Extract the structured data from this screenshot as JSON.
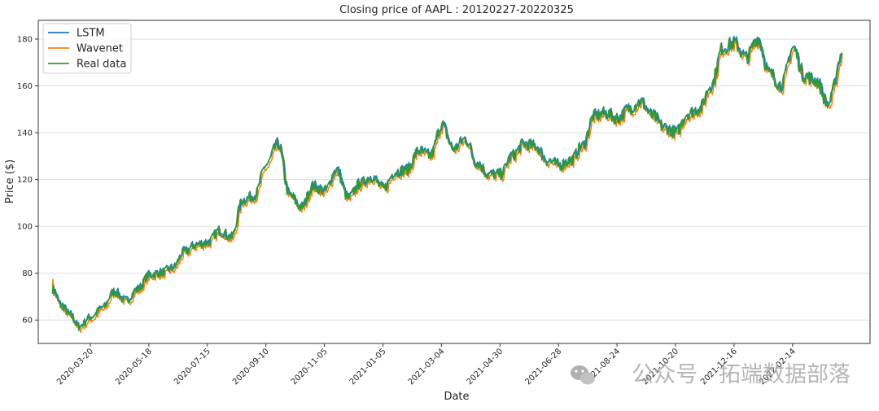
{
  "chart_data": {
    "type": "line",
    "title": "Closing price of AAPL : 20120227-20220325",
    "xlabel": "Date",
    "ylabel": "Price ($)",
    "x_tick_labels": [
      "2020-03-20",
      "2020-05-18",
      "2020-07-15",
      "2020-09-10",
      "2020-11-05",
      "2021-01-05",
      "2021-03-04",
      "2021-04-30",
      "2021-06-28",
      "2021-08-24",
      "2021-10-20",
      "2021-12-16",
      "2022-02-14"
    ],
    "y_ticks": [
      60,
      80,
      100,
      120,
      140,
      160,
      180
    ],
    "ylim": [
      50,
      188
    ],
    "grid": "horizontal",
    "legend_position": "top-left",
    "colors": {
      "LSTM": "#1f77b4",
      "Wavenet": "#ff7f0e",
      "Real data": "#2ca02c"
    },
    "x_days_tick_spacing": 57.5,
    "keypoints_x_index_in_ticks": [
      -0.65,
      -0.5,
      -0.35,
      -0.2,
      0,
      0.2,
      0.4,
      0.6,
      0.8,
      1.0,
      1.2,
      1.4,
      1.6,
      1.8,
      2.0,
      2.2,
      2.4,
      2.6,
      2.8,
      3.0,
      3.2,
      3.4,
      3.6,
      3.8,
      4.0,
      4.2,
      4.4,
      4.6,
      4.8,
      5.0,
      5.2,
      5.4,
      5.6,
      5.8,
      6.0,
      6.2,
      6.4,
      6.6,
      6.8,
      7.0,
      7.2,
      7.4,
      7.6,
      7.8,
      8.0,
      8.2,
      8.4,
      8.6,
      8.8,
      9.0,
      9.2,
      9.4,
      9.6,
      9.8,
      10.0,
      10.2,
      10.4,
      10.6,
      10.8,
      11.0,
      11.2,
      11.4,
      11.6,
      11.8,
      12.0,
      12.2,
      12.4,
      12.6,
      12.85
    ],
    "keypoints_price": [
      73,
      66,
      62,
      57,
      61,
      65,
      72,
      68,
      73,
      79,
      80,
      82,
      89,
      92,
      93,
      98,
      95,
      111,
      113,
      126,
      135,
      113,
      108,
      117,
      115,
      124,
      112,
      118,
      121,
      116,
      123,
      124,
      132,
      130,
      143,
      133,
      137,
      127,
      122,
      122,
      130,
      135,
      134,
      128,
      126,
      128,
      134,
      147,
      148,
      146,
      150,
      153,
      147,
      142,
      140,
      148,
      150,
      160,
      176,
      178,
      172,
      180,
      165,
      160,
      176,
      164,
      162,
      152,
      174
    ],
    "series": [
      {
        "name": "LSTM"
      },
      {
        "name": "Wavenet"
      },
      {
        "name": "Real data"
      }
    ],
    "watermark": "公众号 · 拓端数据部落"
  }
}
